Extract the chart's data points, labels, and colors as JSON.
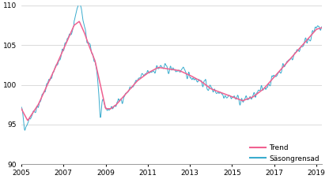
{
  "title": "",
  "ylabel": "",
  "xlabel": "",
  "ylim": [
    90,
    110
  ],
  "xlim_start": 2005.0,
  "xlim_end": 2019.25,
  "yticks": [
    90,
    95,
    100,
    105,
    110
  ],
  "xticks": [
    2005,
    2007,
    2009,
    2011,
    2013,
    2015,
    2017,
    2019
  ],
  "trend_color": "#f06090",
  "seasonal_color": "#3aacce",
  "legend_labels": [
    "Trend",
    "Säsongrensad"
  ],
  "background_color": "#ffffff",
  "grid_color": "#cccccc",
  "trend_linewidth": 1.1,
  "seasonal_linewidth": 0.7,
  "legend_fontsize": 6.5,
  "tick_labelsize": 6.5
}
